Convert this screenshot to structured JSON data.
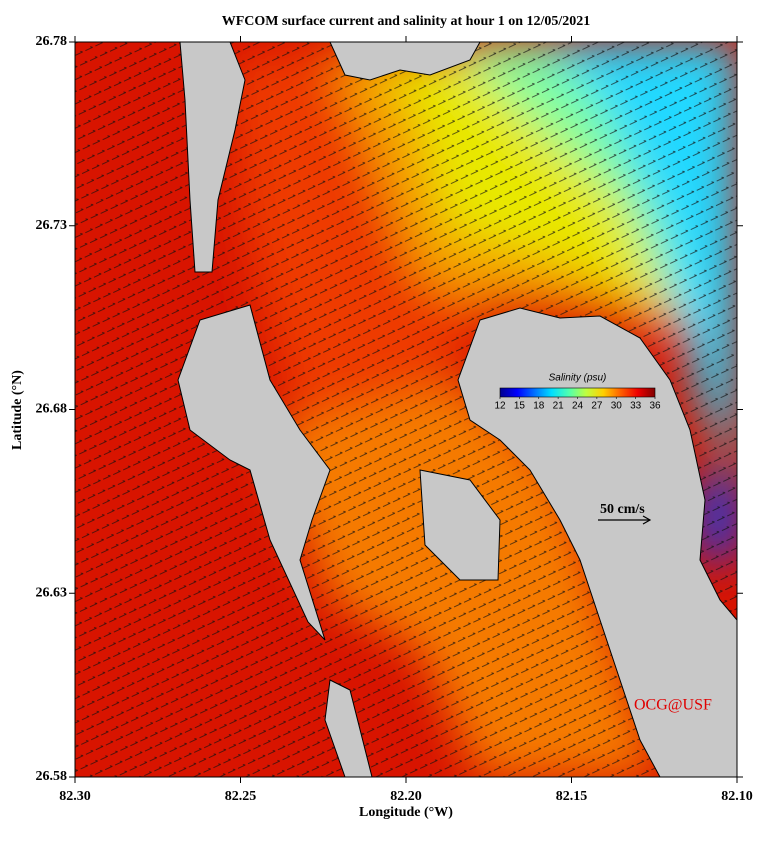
{
  "title": "WFCOM surface current and salinity at hour 1 on 12/05/2021",
  "x_axis": {
    "label": "Longitude (°W)",
    "lim": [
      82.3,
      82.1
    ],
    "ticks": [
      {
        "value": 82.3,
        "label": "82.30"
      },
      {
        "value": 82.25,
        "label": "82.25"
      },
      {
        "value": 82.2,
        "label": "82.20"
      },
      {
        "value": 82.15,
        "label": "82.15"
      },
      {
        "value": 82.1,
        "label": "82.10"
      }
    ]
  },
  "y_axis": {
    "label": "Latitude (°N)",
    "lim": [
      26.58,
      26.78
    ],
    "ticks": [
      26.58,
      26.63,
      26.68,
      26.73,
      26.78
    ]
  },
  "colorbar": {
    "label": "Salinity (psu)",
    "lim": [
      12,
      36
    ],
    "ticks": [
      12,
      15,
      18,
      21,
      24,
      27,
      30,
      33,
      36
    ],
    "colors": [
      "#00008f",
      "#0000ff",
      "#0070ff",
      "#00dfff",
      "#50ffaf",
      "#bfff40",
      "#ffcf00",
      "#ff6000",
      "#ef0000",
      "#800000"
    ]
  },
  "scale_label": "50 cm/s",
  "credit": "OCG@USF"
}
